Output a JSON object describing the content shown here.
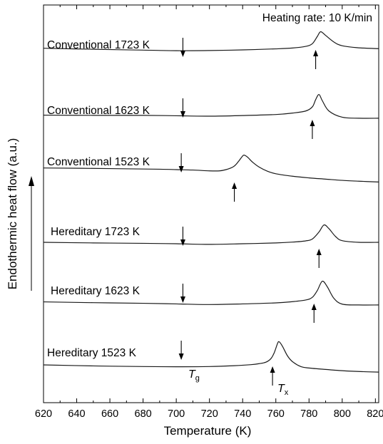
{
  "chart_data": {
    "type": "line",
    "title": "",
    "xlabel": "Temperature (K)",
    "ylabel": "Endothermic heat flow (a.u.)",
    "xlim": [
      620,
      822
    ],
    "x_ticks": [
      "620",
      "640",
      "660",
      "680",
      "700",
      "720",
      "740",
      "760",
      "780",
      "800",
      "820"
    ],
    "y_ticks_shown": false,
    "grid": false,
    "annotation": "Heating rate: 10 K/min",
    "tg_label": {
      "main": "T",
      "sub": "g"
    },
    "tx_label": {
      "main": "T",
      "sub": "x"
    },
    "series": [
      {
        "name": "Conventional 1723 K",
        "Tg": 704,
        "Tx": 784,
        "peak": 787,
        "x": [
          620,
          650,
          680,
          700,
          720,
          740,
          760,
          770,
          778,
          782,
          785,
          787,
          790,
          795,
          800,
          810,
          822
        ],
        "y": [
          0.8,
          0.3,
          -0.1,
          -0.4,
          -0.3,
          0.0,
          0.5,
          0.9,
          1.7,
          3.0,
          6.5,
          8.8,
          7.0,
          3.8,
          2.0,
          1.0,
          0.6
        ]
      },
      {
        "name": "Conventional 1623 K",
        "Tg": 704,
        "Tx": 782,
        "peak": 786,
        "x": [
          620,
          650,
          680,
          700,
          720,
          740,
          760,
          770,
          778,
          782,
          784,
          786,
          788,
          792,
          800,
          810,
          822
        ],
        "y": [
          0.5,
          0.4,
          0.4,
          0.2,
          0.0,
          0.3,
          0.8,
          1.5,
          2.5,
          4.5,
          8.0,
          10.5,
          7.5,
          2.5,
          -0.5,
          -1.0,
          -1.0
        ]
      },
      {
        "name": "Conventional 1523 K",
        "Tg": 703,
        "Tx": 735,
        "peak": 741,
        "x": [
          620,
          660,
          690,
          700,
          710,
          720,
          726,
          730,
          734,
          736,
          738,
          740,
          741,
          743,
          746,
          750,
          755,
          760,
          770,
          780,
          790,
          800,
          810,
          822
        ],
        "y": [
          0.8,
          0.5,
          0.2,
          0.0,
          -0.2,
          -0.6,
          -0.6,
          0.0,
          1.2,
          2.5,
          4.5,
          6.6,
          7.0,
          6.0,
          3.6,
          1.2,
          -0.8,
          -2.0,
          -3.2,
          -4.0,
          -4.6,
          -5.2,
          -5.6,
          -6.0
        ]
      },
      {
        "name": "Hereditary 1723 K",
        "Tg": 704,
        "Tx": 786,
        "peak": 789,
        "x": [
          620,
          650,
          680,
          700,
          720,
          740,
          760,
          770,
          778,
          782,
          786,
          789,
          792,
          796,
          800,
          810,
          822
        ],
        "y": [
          0.0,
          -0.3,
          -0.5,
          -0.7,
          -1.0,
          -0.7,
          -0.3,
          0.1,
          0.7,
          1.6,
          5.0,
          8.4,
          6.6,
          2.8,
          0.8,
          0.0,
          0.0
        ]
      },
      {
        "name": "Hereditary 1623 K",
        "Tg": 704,
        "Tx": 783,
        "peak": 788,
        "x": [
          620,
          650,
          680,
          700,
          720,
          740,
          760,
          770,
          778,
          782,
          785,
          788,
          791,
          795,
          800,
          810,
          822
        ],
        "y": [
          0.5,
          0.1,
          -0.2,
          -0.5,
          -0.8,
          -0.5,
          0.0,
          0.6,
          1.4,
          2.7,
          6.0,
          10.5,
          7.8,
          2.2,
          -0.6,
          -1.0,
          -1.0
        ]
      },
      {
        "name": "Hereditary 1523 K",
        "Tg": 703,
        "Tx": 758,
        "peak": 762,
        "x": [
          620,
          650,
          680,
          700,
          720,
          735,
          745,
          750,
          754,
          757,
          759,
          761,
          762,
          764,
          767,
          770,
          775,
          780,
          790,
          800,
          810,
          822
        ],
        "y": [
          0.0,
          -0.5,
          -0.8,
          -0.9,
          -0.8,
          -0.4,
          0.1,
          0.6,
          1.3,
          3.0,
          5.8,
          10.3,
          11.2,
          9.0,
          4.4,
          1.6,
          -0.8,
          -1.5,
          -2.2,
          -2.8,
          -3.2,
          -3.5
        ]
      }
    ]
  }
}
